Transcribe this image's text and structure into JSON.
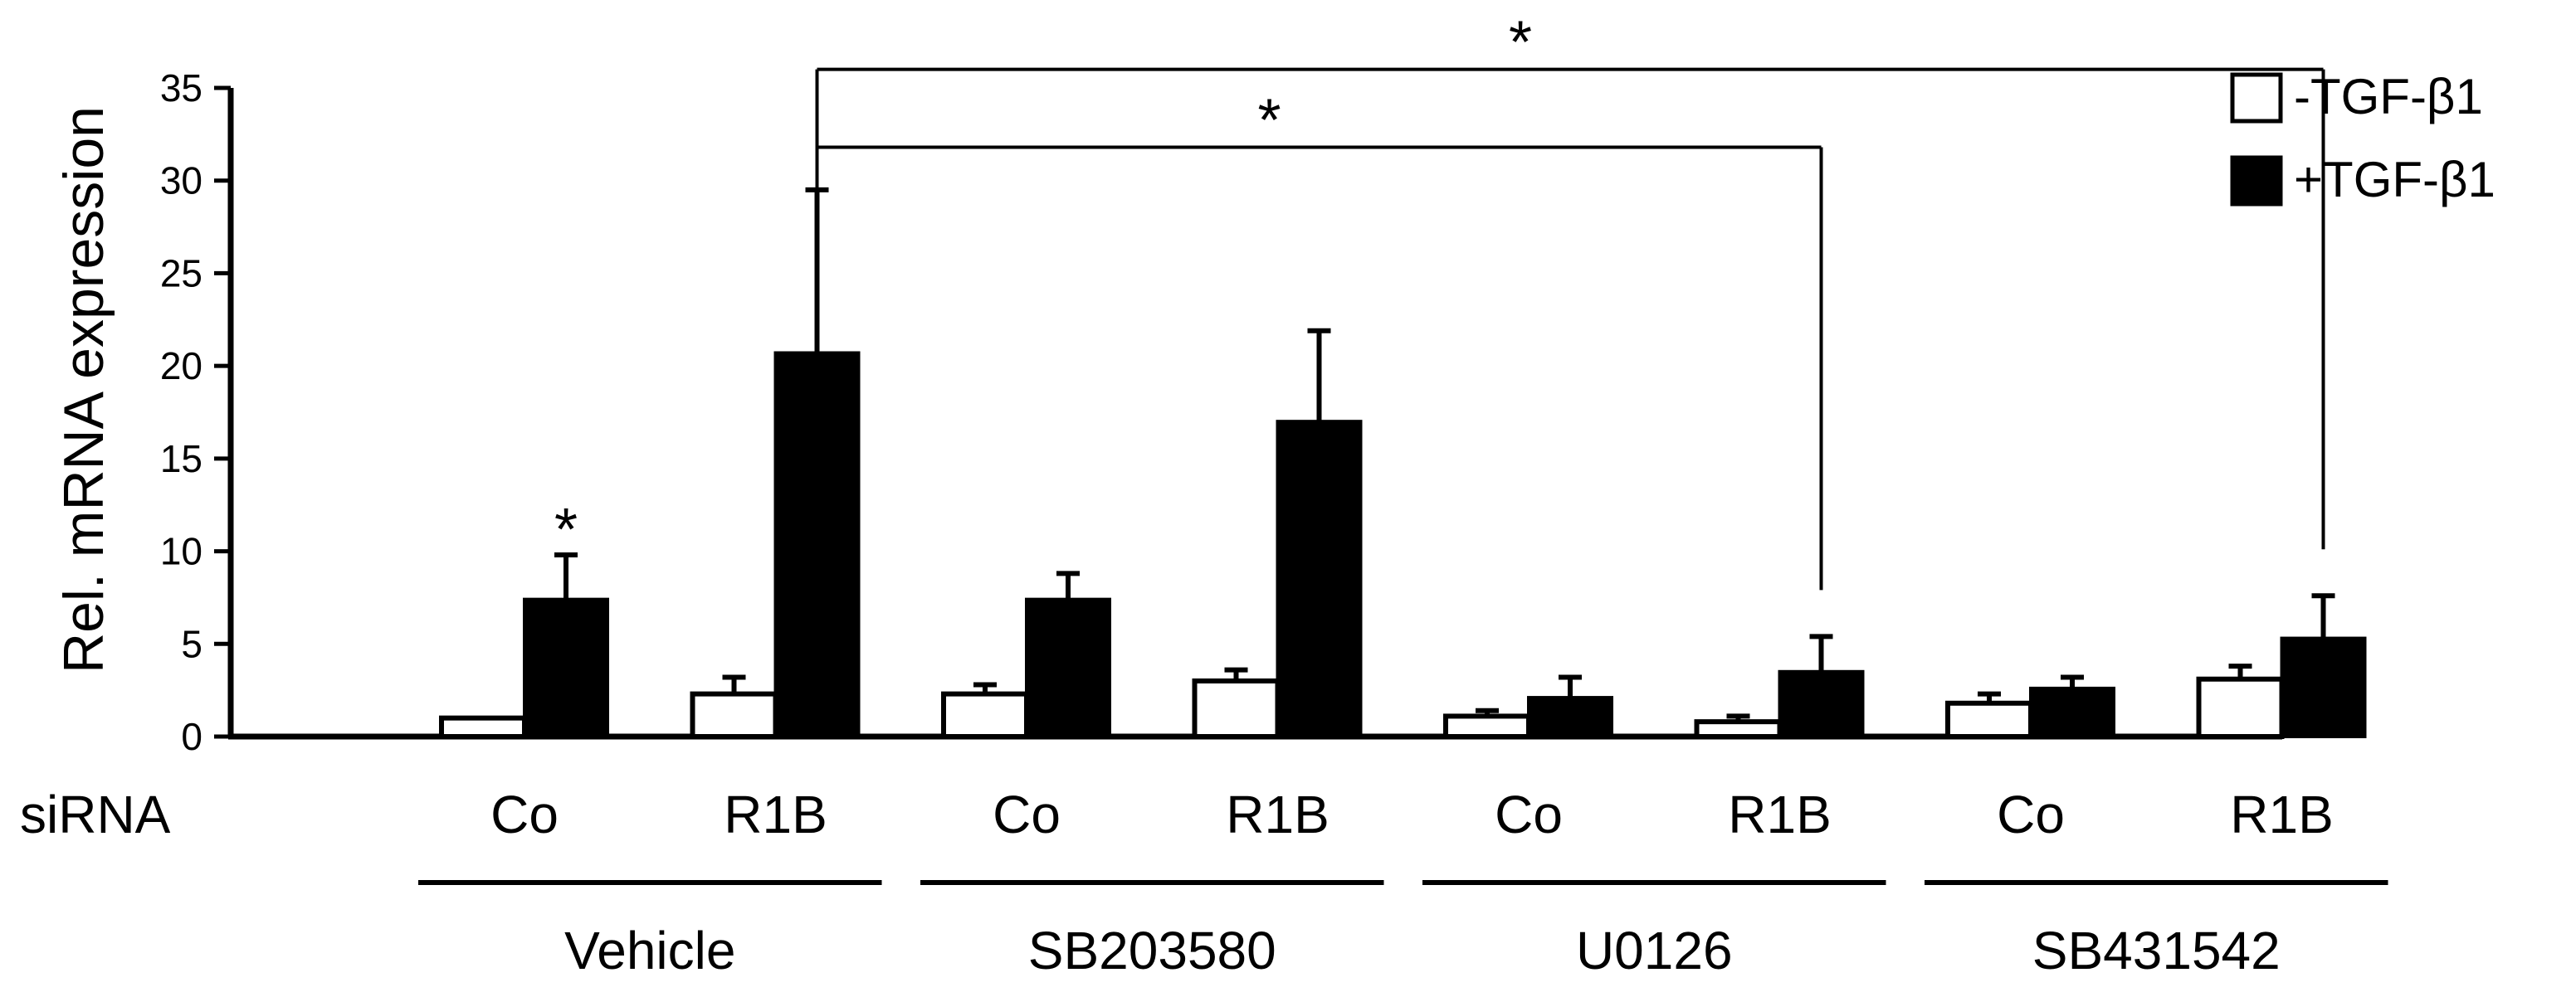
{
  "chart_data": {
    "type": "bar",
    "ylabel": "Rel. mRNA expression",
    "ylim": [
      0,
      35
    ],
    "yticks": [
      "0",
      "5",
      "10",
      "15",
      "20",
      "25",
      "30",
      "35"
    ],
    "grid": false,
    "legend_position": "top-right",
    "row_label": "siRNA",
    "categories": [
      "Co",
      "R1B",
      "Co",
      "R1B",
      "Co",
      "R1B",
      "Co",
      "R1B"
    ],
    "groups": [
      {
        "label": "Vehicle",
        "categories": [
          0,
          1
        ]
      },
      {
        "label": "SB203580",
        "categories": [
          2,
          3
        ]
      },
      {
        "label": "U0126",
        "categories": [
          4,
          5
        ]
      },
      {
        "label": "SB431542",
        "categories": [
          6,
          7
        ]
      }
    ],
    "series": [
      {
        "name": "-TGF-β1",
        "color": "#ffffff",
        "values": [
          1.0,
          2.3,
          2.3,
          3.0,
          1.1,
          0.8,
          1.8,
          3.1
        ],
        "errors": [
          0.0,
          0.9,
          0.5,
          0.6,
          0.3,
          0.3,
          0.5,
          0.7
        ]
      },
      {
        "name": "+TGF-β1",
        "color": "#000000",
        "values": [
          7.4,
          20.7,
          7.4,
          17.0,
          2.1,
          3.5,
          2.6,
          5.3
        ],
        "errors": [
          2.4,
          8.8,
          1.4,
          4.9,
          1.1,
          1.9,
          0.6,
          2.3
        ]
      }
    ],
    "significance": [
      {
        "label": "*",
        "category": 0,
        "series": 1
      },
      {
        "label": "*",
        "from_category": 1,
        "to_category": 5,
        "series": 1,
        "y": 31.8
      },
      {
        "label": "*",
        "from_category": 1,
        "to_category": 7,
        "series": 1,
        "y": 36.0
      }
    ]
  }
}
